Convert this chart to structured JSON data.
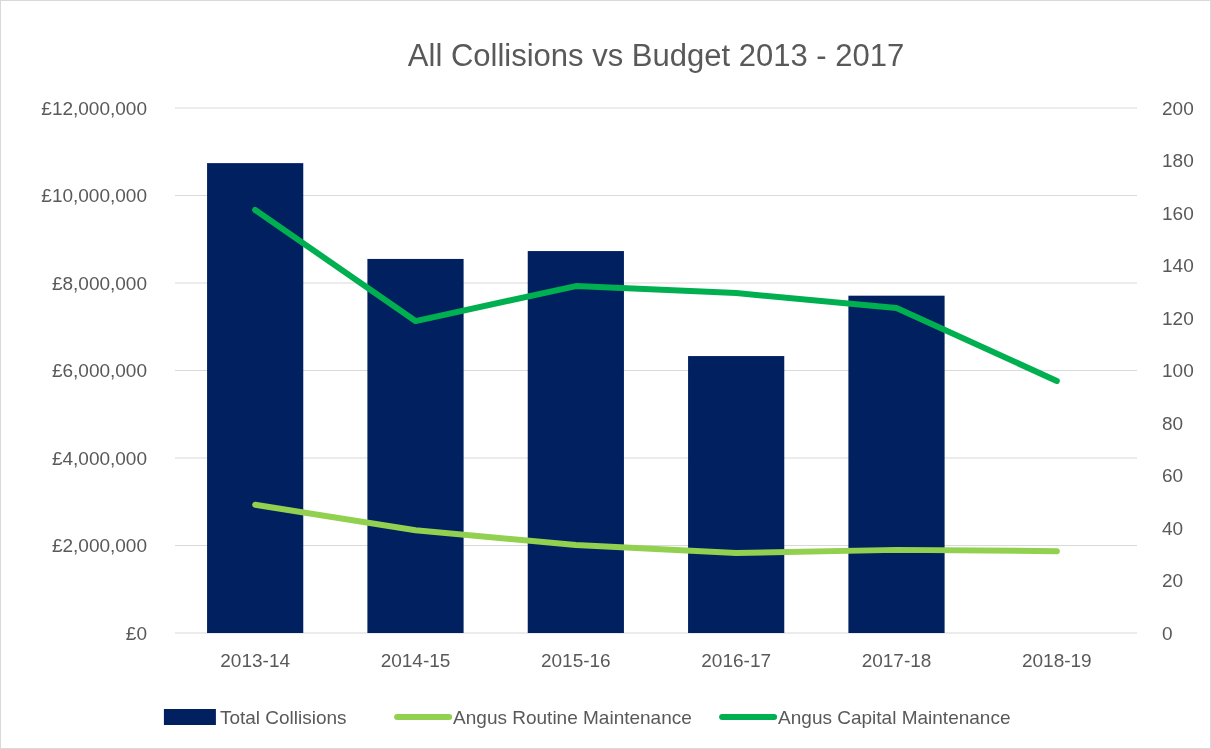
{
  "chart_data": {
    "type": "bar",
    "title": "All Collisions vs Budget 2013 - 2017",
    "categories": [
      "2013-14",
      "2014-15",
      "2015-16",
      "2016-17",
      "2017-18",
      "2018-19"
    ],
    "series": [
      {
        "name": "Total Collisions",
        "axis": "y2",
        "color": "#002060",
        "values": [
          179,
          142.5,
          145.5,
          105.5,
          128.5,
          null
        ]
      },
      {
        "name": "Angus Routine Maintenance",
        "type": "line",
        "axis": "y",
        "color": "#92d050",
        "values": [
          2930000,
          2350000,
          2010000,
          1830000,
          1900000,
          1870000
        ]
      },
      {
        "name": "Angus Capital Maintenance",
        "type": "line",
        "axis": "y",
        "color": "#00b050",
        "values": [
          9670000,
          7130000,
          7930000,
          7770000,
          7430000,
          5760000
        ]
      }
    ],
    "ylim": [
      0,
      12000000
    ],
    "yticks": [
      {
        "value": 0,
        "label": "£0"
      },
      {
        "value": 2000000,
        "label": "£2,000,000"
      },
      {
        "value": 4000000,
        "label": "£4,000,000"
      },
      {
        "value": 6000000,
        "label": "£6,000,000"
      },
      {
        "value": 8000000,
        "label": "£8,000,000"
      },
      {
        "value": 10000000,
        "label": "£10,000,000"
      },
      {
        "value": 12000000,
        "label": "£12,000,000"
      }
    ],
    "y2lim": [
      0,
      200
    ],
    "y2ticks": [
      0,
      20,
      40,
      60,
      80,
      100,
      120,
      140,
      160,
      180,
      200
    ],
    "grid": "y",
    "legend": "bottom",
    "marker": "none",
    "line_style": "solid"
  }
}
